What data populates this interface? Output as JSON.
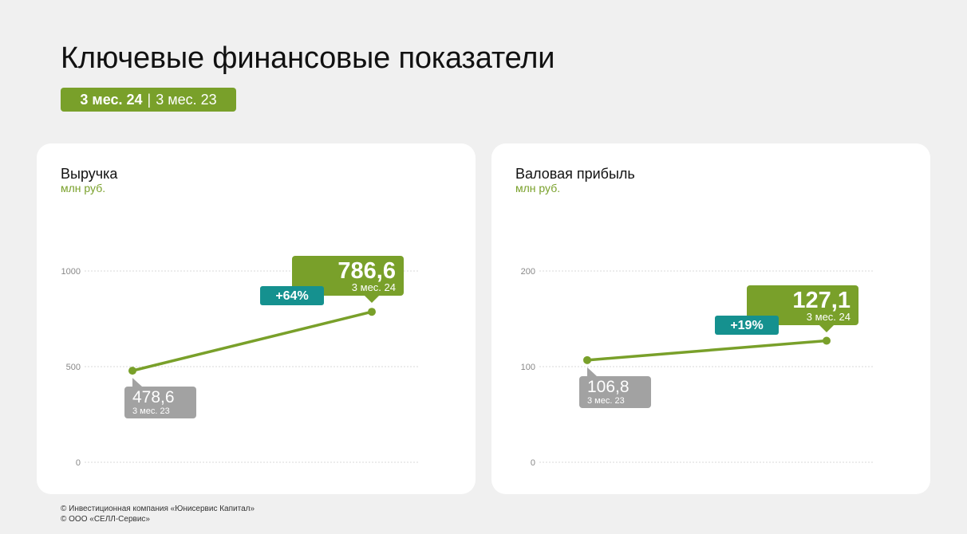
{
  "header": {
    "title": "Ключевые финансовые показатели",
    "period_active": "3 мес. 24",
    "period_separator": "|",
    "period_other": "3 мес. 23"
  },
  "colors": {
    "accent": "#79a02a",
    "teal": "#15918f",
    "gray_label": "#a2a2a2",
    "grid": "#d9d9d9",
    "tick": "#888888"
  },
  "chart_data": [
    {
      "type": "line",
      "title": "Выручка",
      "ylabel": "млн руб.",
      "ylim": [
        0,
        1000
      ],
      "yticks": [
        0,
        500,
        1000
      ],
      "ytick_labels": [
        "0",
        "500",
        "1000"
      ],
      "categories": [
        "3 мес. 23",
        "3 мес. 24"
      ],
      "values": [
        478.6,
        786.6
      ],
      "value_labels": [
        "478,6",
        "786,6"
      ],
      "change_label": "+64%",
      "grid": true
    },
    {
      "type": "line",
      "title": "Валовая прибыль",
      "ylabel": "млн руб.",
      "ylim": [
        0,
        200
      ],
      "yticks": [
        0,
        100,
        200
      ],
      "ytick_labels": [
        "0",
        "100",
        "200"
      ],
      "categories": [
        "3 мес. 23",
        "3 мес. 24"
      ],
      "values": [
        106.8,
        127.1
      ],
      "value_labels": [
        "106,8",
        "127,1"
      ],
      "change_label": "+19%",
      "grid": true
    }
  ],
  "footer": {
    "line1": "© Инвестиционная компания «Юнисервис Капитал»",
    "line2": "© ООО «СЕЛЛ-Сервис»"
  }
}
